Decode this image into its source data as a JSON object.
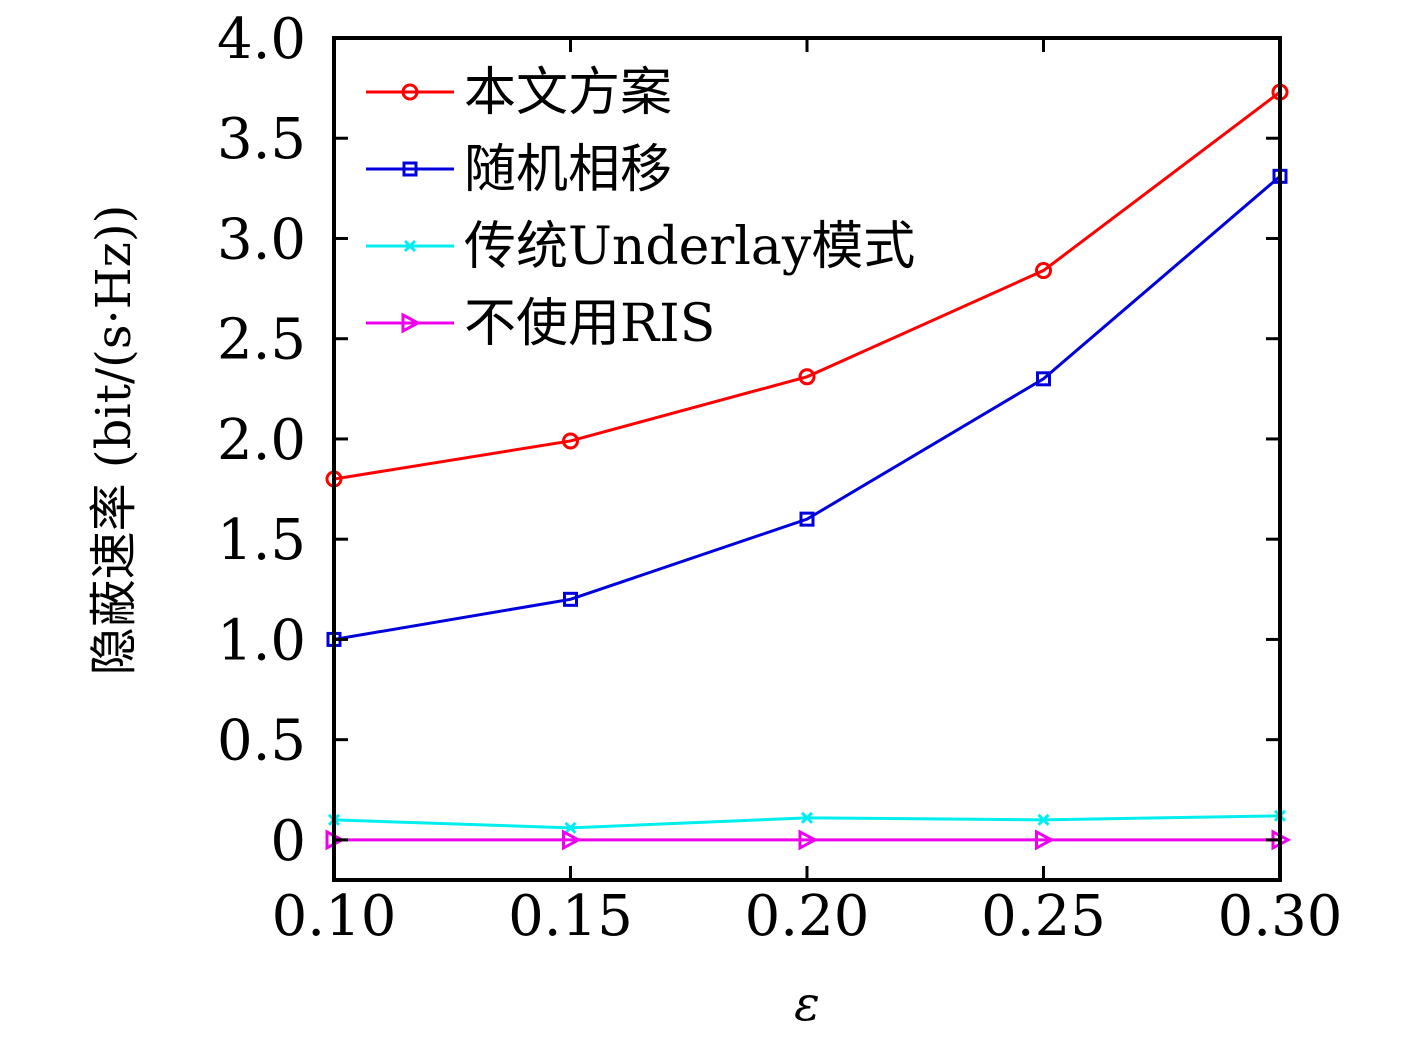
{
  "chart_data": {
    "type": "line",
    "xlabel": "ε",
    "ylabel": "隐蔽速率 (bit/(s·Hz))",
    "x": [
      0.1,
      0.15,
      0.2,
      0.25,
      0.3
    ],
    "x_tick_labels": [
      "0.10",
      "0.15",
      "0.20",
      "0.25",
      "0.30"
    ],
    "xlim": [
      0.1,
      0.3
    ],
    "y_ticks": [
      0,
      0.5,
      1.0,
      1.5,
      2.0,
      2.5,
      3.0,
      3.5,
      4.0
    ],
    "y_tick_labels": [
      "0",
      "0.5",
      "1.0",
      "1.5",
      "2.0",
      "2.5",
      "3.0",
      "3.5",
      "4.0"
    ],
    "ylim": [
      -0.2,
      4.0
    ],
    "grid": false,
    "legend_position": "top-left",
    "series": [
      {
        "name": "本文方案",
        "color": "#ff0000",
        "marker": "circle",
        "values": [
          1.8,
          1.99,
          2.31,
          2.84,
          3.73
        ]
      },
      {
        "name": "随机相移",
        "color": "#0000dd",
        "marker": "square",
        "values": [
          1.0,
          1.2,
          1.6,
          2.3,
          3.31
        ]
      },
      {
        "name": "传统Underlay模式",
        "color": "#00eeee",
        "marker": "x",
        "values": [
          0.1,
          0.06,
          0.11,
          0.1,
          0.12
        ]
      },
      {
        "name": "不使用RIS",
        "color": "#ee00ee",
        "marker": "triangle-right",
        "values": [
          0.0,
          0.0,
          0.0,
          0.0,
          0.0
        ]
      }
    ]
  }
}
